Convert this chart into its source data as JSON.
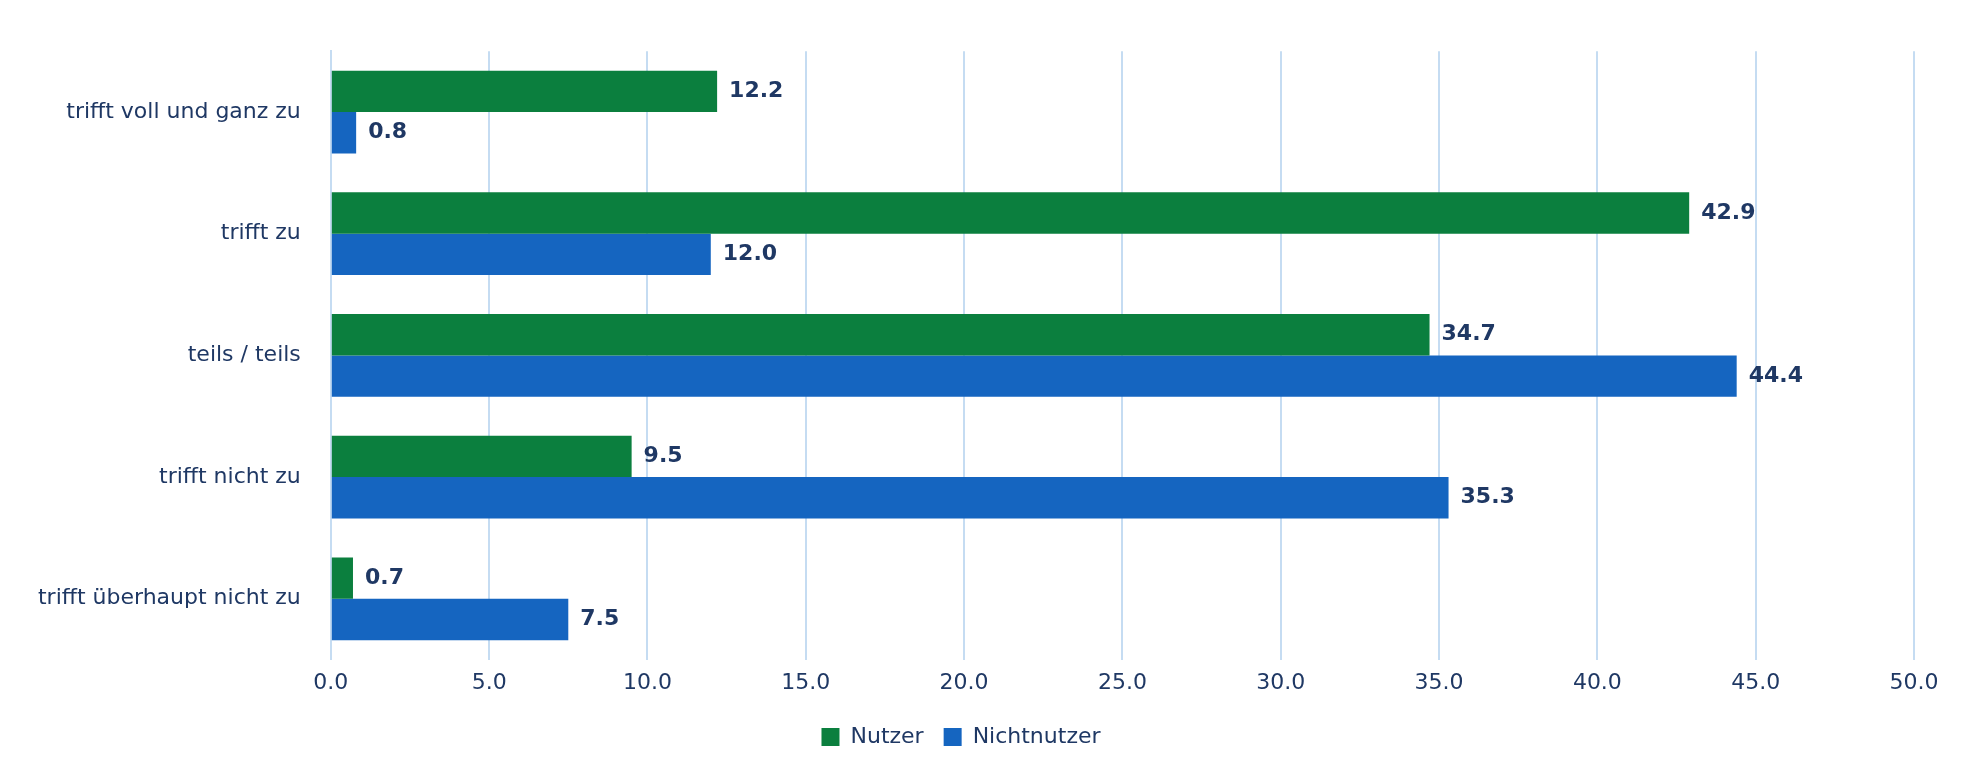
{
  "chart_data": {
    "type": "bar",
    "orientation": "horizontal",
    "categories": [
      "trifft voll und ganz zu",
      "trifft zu",
      "teils / teils",
      "trifft nicht zu",
      "trifft überhaupt nicht zu"
    ],
    "series": [
      {
        "name": "Nutzer",
        "color": "#0b7f3e",
        "values": [
          12.2,
          42.9,
          34.7,
          9.5,
          0.7
        ],
        "value_labels": [
          "12.2",
          "42.9",
          "34.7",
          "9.5",
          "0.7"
        ]
      },
      {
        "name": "Nichtnutzer",
        "color": "#1565c0",
        "values": [
          0.8,
          12.0,
          44.4,
          35.3,
          7.5
        ],
        "value_labels": [
          "0.8",
          "12.0",
          "44.4",
          "35.3",
          "7.5"
        ]
      }
    ],
    "xlim": [
      0,
      50
    ],
    "xticks": [
      {
        "value": 0,
        "label": "0.0"
      },
      {
        "value": 5,
        "label": "5.0"
      },
      {
        "value": 10,
        "label": "10.0"
      },
      {
        "value": 15,
        "label": "15.0"
      },
      {
        "value": 20,
        "label": "20.0"
      },
      {
        "value": 25,
        "label": "25.0"
      },
      {
        "value": 30,
        "label": "30.0"
      },
      {
        "value": 35,
        "label": "35.0"
      },
      {
        "value": 40,
        "label": "40.0"
      },
      {
        "value": 45,
        "label": "45.0"
      },
      {
        "value": 50,
        "label": "50.0"
      }
    ],
    "grid": "x",
    "legend": "bottom"
  }
}
